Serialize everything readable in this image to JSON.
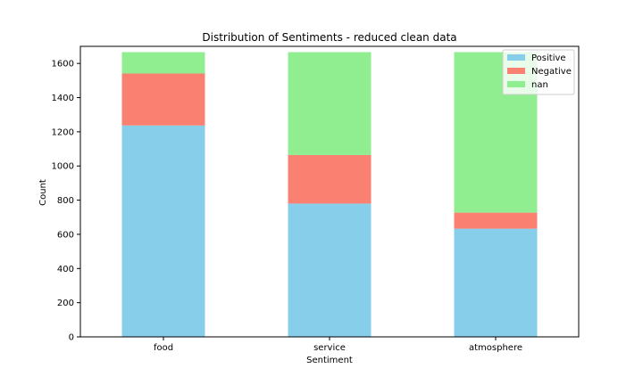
{
  "chart_data": {
    "type": "bar",
    "stacked": true,
    "title": "Distribution of Sentiments - reduced clean data",
    "xlabel": "Sentiment",
    "ylabel": "Count",
    "categories": [
      "food",
      "service",
      "atmosphere"
    ],
    "series": [
      {
        "name": "Positive",
        "color": "#87ceeb",
        "values": [
          1237,
          780,
          633
        ]
      },
      {
        "name": "Negative",
        "color": "#fa8072",
        "values": [
          304,
          284,
          94
        ]
      },
      {
        "name": "nan",
        "color": "#90ee90",
        "values": [
          125,
          602,
          939
        ]
      }
    ],
    "ylim": [
      0,
      1700
    ],
    "yticks": [
      0,
      200,
      400,
      600,
      800,
      1000,
      1200,
      1400,
      1600
    ],
    "legend_position": "top-right",
    "grid": false
  }
}
